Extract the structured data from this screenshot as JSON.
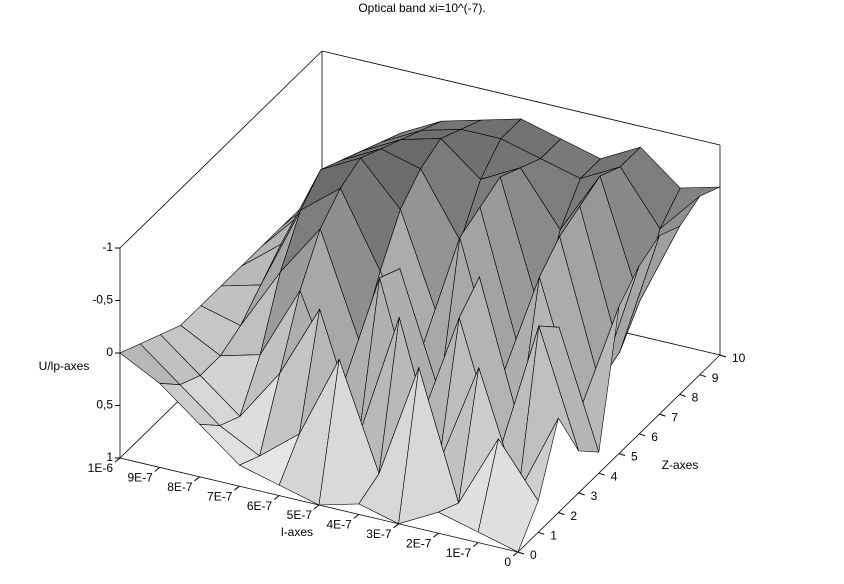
{
  "chart_data": {
    "type": "surface3d",
    "title": "Optical band xi=10^(-7).",
    "x_label": "l-axes",
    "y_label": "Z-axes",
    "z_label": "U/lp-axes",
    "x": [
      1e-06,
      9e-07,
      8e-07,
      7e-07,
      6e-07,
      5e-07,
      4e-07,
      3e-07,
      2e-07,
      1e-07,
      0
    ],
    "y": [
      0,
      1,
      2,
      3,
      4,
      5,
      6,
      7,
      8,
      9,
      10
    ],
    "values": [
      [
        0,
        0.2,
        0.5,
        0.8,
        0.9,
        1,
        0.9,
        1,
        0.8,
        0.9,
        1
      ],
      [
        0.1,
        0.4,
        0.7,
        0.9,
        0.6,
        -0.2,
        0.8,
        -0.3,
        0.9,
        0.2,
        0.7
      ],
      [
        0.2,
        0.5,
        0.8,
        0.3,
        -0.4,
        0.7,
        -0.5,
        0.8,
        -0.2,
        0.9,
        0.1
      ],
      [
        0.3,
        0.5,
        0.4,
        -0.3,
        0.6,
        -0.6,
        0.7,
        -0.4,
        0.8,
        -0.5,
        0.6
      ],
      [
        0.3,
        0.4,
        -0.2,
        -0.7,
        0.3,
        -0.5,
        0.6,
        -0.6,
        0.7,
        -0.3,
        0.8
      ],
      [
        0.3,
        0.2,
        -0.6,
        -0.9,
        -0.2,
        0.5,
        -0.7,
        0.6,
        -0.5,
        0.7,
        -0.4
      ],
      [
        0.3,
        0,
        -0.8,
        -1,
        -0.6,
        0.4,
        -0.8,
        0.5,
        -0.7,
        0.6,
        -0.6
      ],
      [
        0.3,
        -0.1,
        -0.7,
        -0.9,
        -0.8,
        -0.2,
        -0.9,
        0.3,
        -0.8,
        0.5,
        -0.7
      ],
      [
        0.3,
        -0.1,
        -0.6,
        -0.8,
        -0.9,
        -0.6,
        -0.8,
        -0.3,
        -0.9,
        0.2,
        -0.6
      ],
      [
        0.3,
        -0.1,
        -0.5,
        -0.7,
        -0.8,
        -0.8,
        -0.7,
        -0.6,
        -0.8,
        -0.3,
        -0.7
      ],
      [
        0.3,
        -0.1,
        -0.4,
        -0.6,
        -0.7,
        -0.8,
        -0.7,
        -0.6,
        -0.8,
        -0.5,
        -0.6
      ]
    ],
    "xlim": [
      1e-06,
      0
    ],
    "ylim": [
      0,
      10
    ],
    "zlim": [
      1,
      -1
    ],
    "xticks": [
      {
        "value": 1e-06,
        "label": "1E-6"
      },
      {
        "value": 9e-07,
        "label": "9E-7"
      },
      {
        "value": 8e-07,
        "label": "8E-7"
      },
      {
        "value": 7e-07,
        "label": "7E-7"
      },
      {
        "value": 6e-07,
        "label": "6E-7"
      },
      {
        "value": 5e-07,
        "label": "5E-7"
      },
      {
        "value": 4e-07,
        "label": "4E-7"
      },
      {
        "value": 3e-07,
        "label": "3E-7"
      },
      {
        "value": 2e-07,
        "label": "2E-7"
      },
      {
        "value": 1e-07,
        "label": "1E-7"
      },
      0
    ],
    "yticks": [
      0,
      1,
      2,
      3,
      4,
      5,
      6,
      7,
      8,
      9,
      10
    ],
    "zticks": [
      -1,
      {
        "value": -0.5,
        "label": "-0,5"
      },
      0,
      {
        "value": 0.5,
        "label": "0,5"
      },
      1
    ]
  }
}
